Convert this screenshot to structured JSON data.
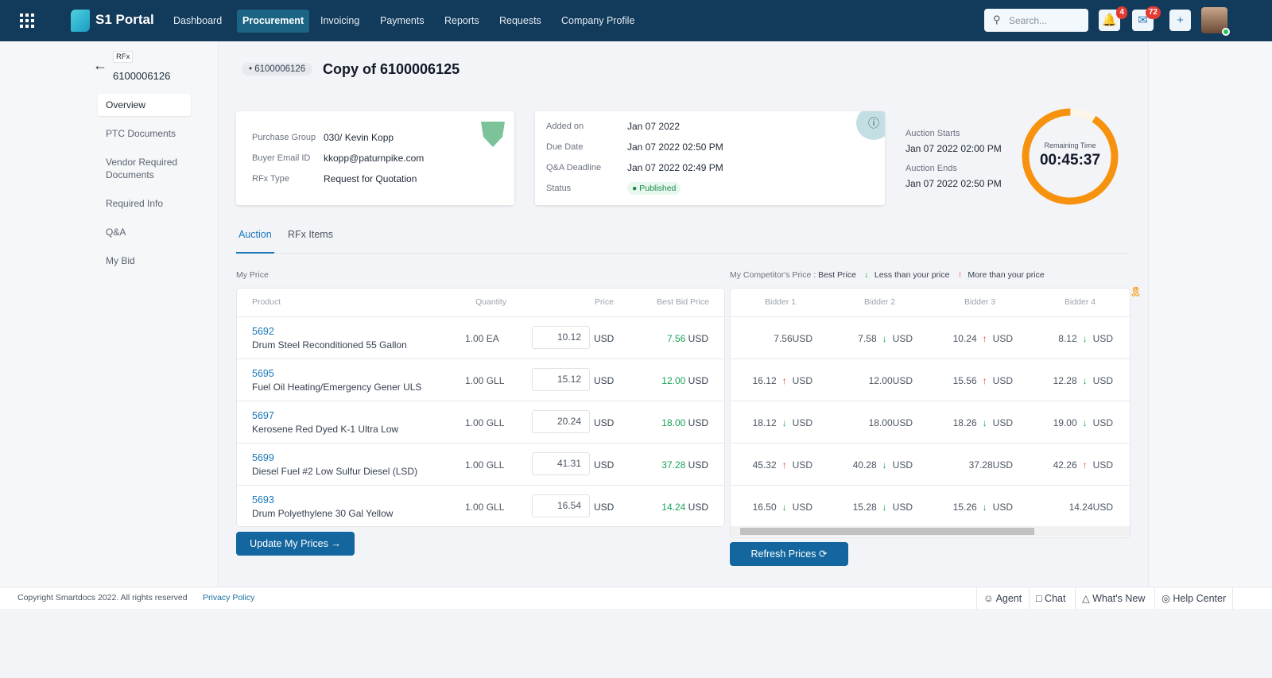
{
  "nav": {
    "brand": "S1 Portal",
    "items": [
      "Dashboard",
      "Procurement",
      "Invoicing",
      "Payments",
      "Reports",
      "Requests",
      "Company Profile"
    ],
    "active": 1,
    "search_placeholder": "Search...",
    "notifications": "4",
    "messages": "72"
  },
  "sidebar": {
    "tag": "RFx",
    "id": "6100006126",
    "items": [
      "Overview",
      "PTC Documents",
      "Vendor Required Documents",
      "Required Info",
      "Q&A",
      "My Bid"
    ]
  },
  "header": {
    "badge": "6100006126",
    "title": "Copy of 6100006125"
  },
  "info1": {
    "labels": [
      "Purchase Group",
      "Buyer Email ID",
      "RFx Type"
    ],
    "values": [
      "030/ Kevin Kopp",
      "kkopp@paturnpike.com",
      "Request for Quotation"
    ],
    "logo": "TURN PIKE"
  },
  "info2": {
    "labels": [
      "Added on",
      "Due Date",
      "Q&A Deadline",
      "Status"
    ],
    "values": [
      "Jan 07 2022",
      "Jan 07 2022 02:50 PM",
      "Jan 07 2022 02:49 PM"
    ],
    "status": "Published"
  },
  "auction": {
    "starts_label": "Auction Starts",
    "starts": "Jan 07 2022 02:00 PM",
    "ends_label": "Auction Ends",
    "ends": "Jan 07 2022 02:50 PM",
    "remaining_label": "Remaining Time",
    "remaining": "00:45:37",
    "remaining_fraction": 0.91
  },
  "tabs": [
    "Auction",
    "RFx Items"
  ],
  "my_price": {
    "title": "My Price",
    "headers": [
      "Product",
      "Quantity",
      "Price",
      "Best Bid Price"
    ],
    "currency": "USD",
    "update_label": "Update My Prices"
  },
  "competitor": {
    "title": "My Competitor's Price :",
    "legend": [
      "Best Price",
      "Less than your price",
      "More than your price"
    ],
    "headers": [
      "Bidder 1",
      "Bidder 2",
      "Bidder 3",
      "Bidder 4"
    ],
    "refresh_label": "Refresh Prices"
  },
  "rows": [
    {
      "code": "5692",
      "name": "Drum Steel Reconditioned 55 Gallon",
      "qty": "1.00 EA",
      "price": "10.12",
      "best": "7.56",
      "bids": [
        [
          "7.56",
          "best"
        ],
        [
          "7.58",
          "less"
        ],
        [
          "10.24",
          "more"
        ],
        [
          "8.12",
          "less"
        ]
      ]
    },
    {
      "code": "5695",
      "name": "Fuel Oil Heating/Emergency Gener ULS",
      "qty": "1.00 GLL",
      "price": "15.12",
      "best": "12.00",
      "bids": [
        [
          "16.12",
          "more"
        ],
        [
          "12.00",
          "best"
        ],
        [
          "15.56",
          "more"
        ],
        [
          "12.28",
          "less"
        ]
      ]
    },
    {
      "code": "5697",
      "name": "Kerosene Red Dyed K-1 Ultra Low",
      "qty": "1.00 GLL",
      "price": "20.24",
      "best": "18.00",
      "bids": [
        [
          "18.12",
          "less"
        ],
        [
          "18.00",
          "best"
        ],
        [
          "18.26",
          "less"
        ],
        [
          "19.00",
          "less"
        ]
      ]
    },
    {
      "code": "5699",
      "name": "Diesel Fuel #2 Low Sulfur Diesel (LSD)",
      "qty": "1.00 GLL",
      "price": "41.31",
      "best": "37.28",
      "bids": [
        [
          "45.32",
          "more"
        ],
        [
          "40.28",
          "less"
        ],
        [
          "37.28",
          "best"
        ],
        [
          "42.26",
          "more"
        ]
      ]
    },
    {
      "code": "5693",
      "name": "Drum Polyethylene 30 Gal Yellow",
      "qty": "1.00 GLL",
      "price": "16.54",
      "best": "14.24",
      "bids": [
        [
          "16.50",
          "less"
        ],
        [
          "15.28",
          "less"
        ],
        [
          "15.26",
          "less"
        ],
        [
          "14.24",
          "best"
        ]
      ]
    }
  ],
  "footer": {
    "copyright": "Copyright  Smartdocs 2022. All rights reserved",
    "privacy": "Privacy Policy",
    "buttons": [
      "Agent",
      "Chat",
      "What's New",
      "Help Center"
    ]
  }
}
